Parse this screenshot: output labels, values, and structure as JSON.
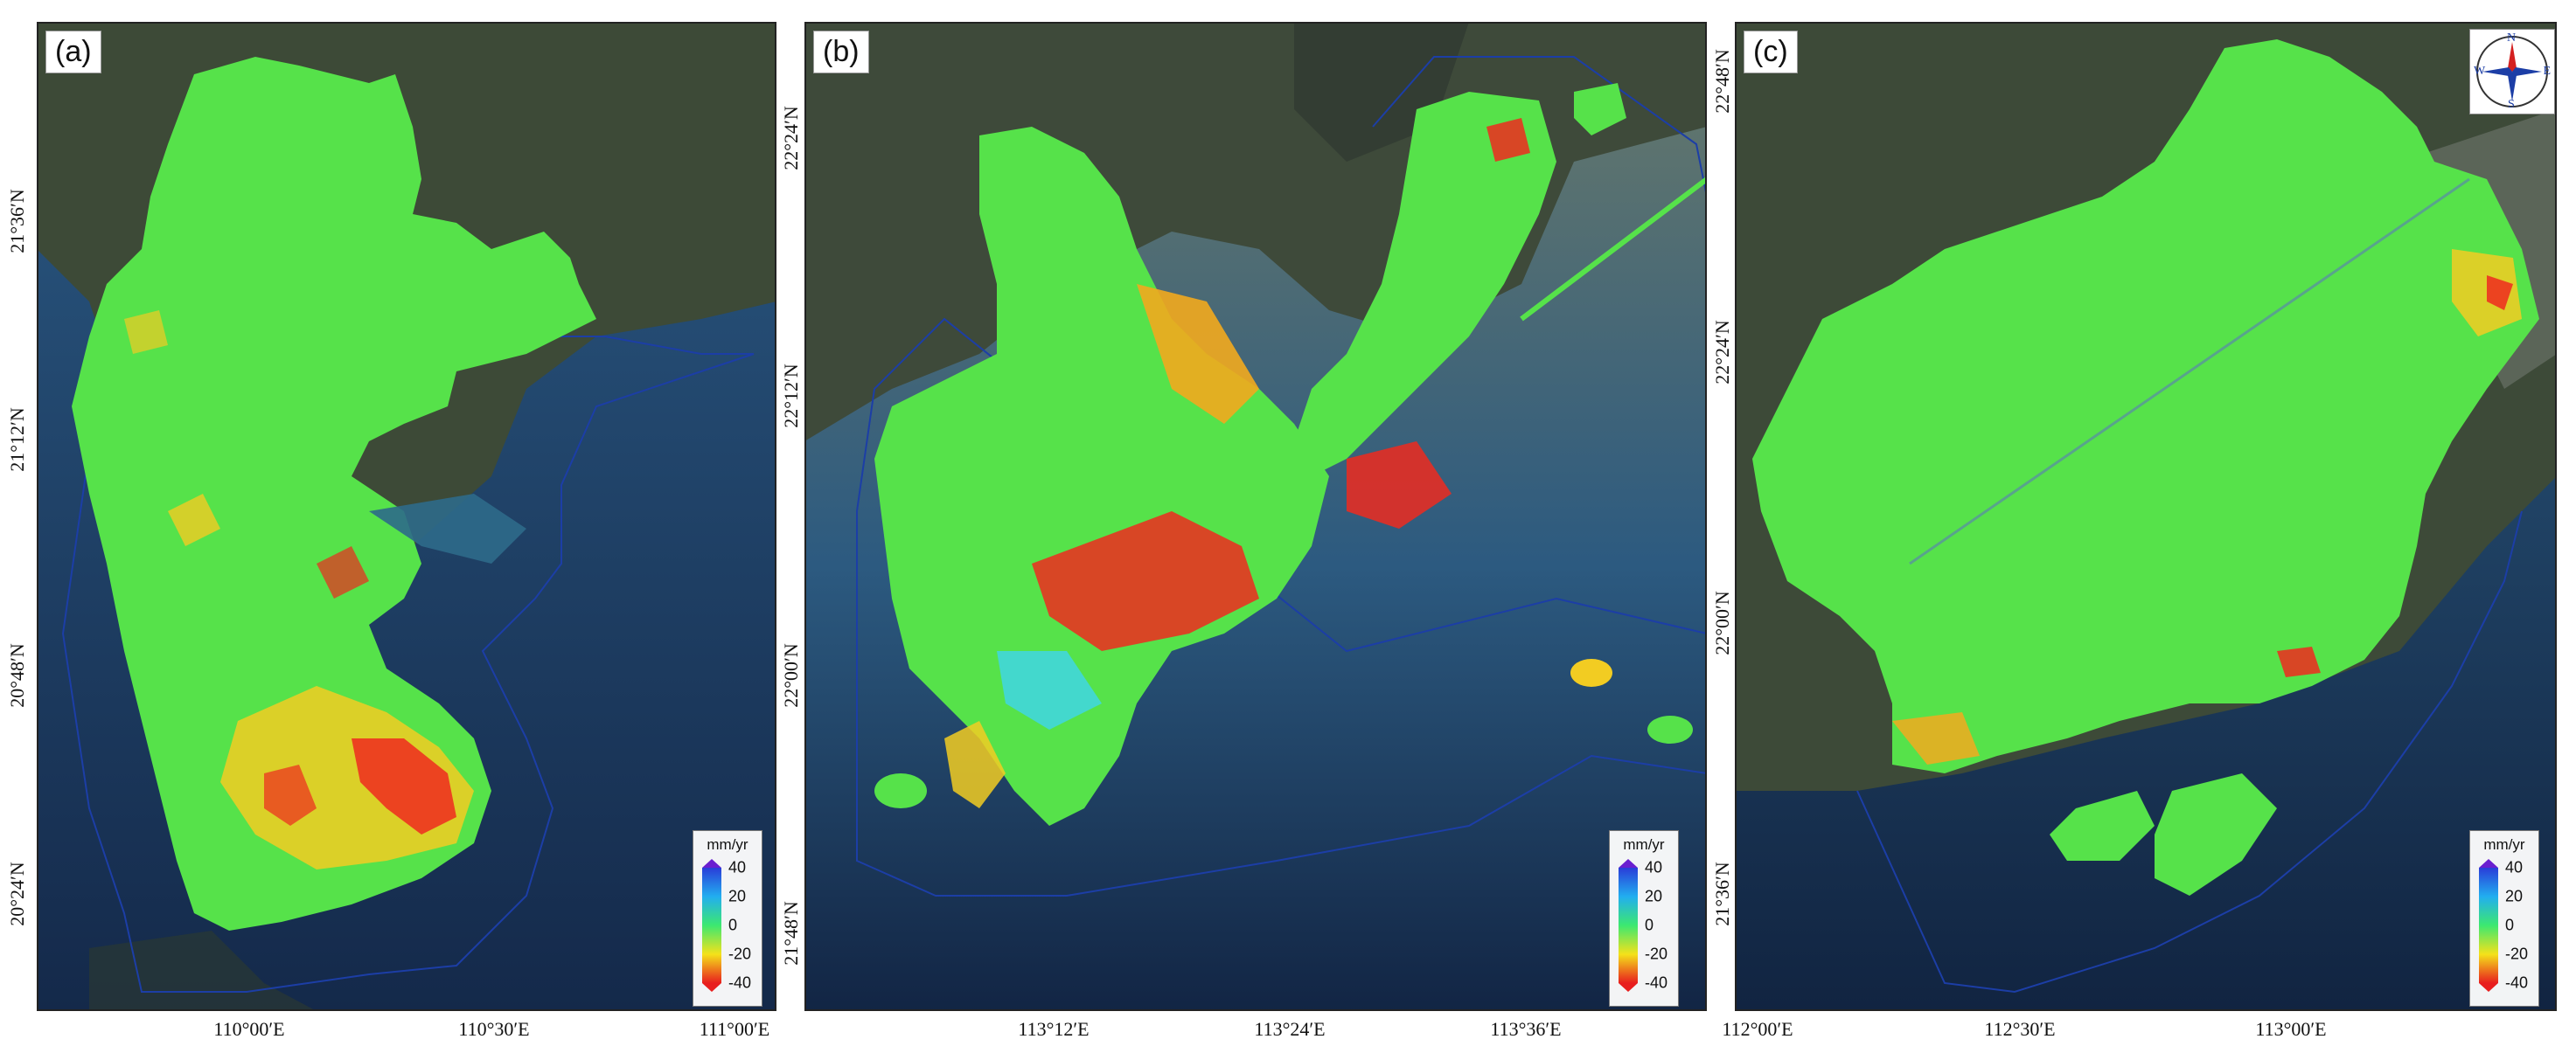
{
  "panels": [
    {
      "id": "a",
      "label": "(a)",
      "lat_labels": [
        "21°36′N",
        "21°12′N",
        "20°48′N",
        "20°24′N"
      ],
      "lon_labels": [
        "110°00′E",
        "110°30′E",
        "111°00′E"
      ]
    },
    {
      "id": "b",
      "label": "(b)",
      "lat_labels_left": [
        "22°24′N",
        "22°12′N",
        "22°00′N",
        "21°48′N"
      ],
      "lon_labels": [
        "113°12′E",
        "113°24′E",
        "113°36′E"
      ]
    },
    {
      "id": "c",
      "label": "(c)",
      "lat_labels_left": [
        "22°48′N",
        "22°24′N",
        "22°00′N",
        "21°36′N"
      ],
      "lon_labels": [
        "112°00′E",
        "112°30′E",
        "113°00′E"
      ]
    }
  ],
  "legend": {
    "unit": "mm/yr",
    "ticks": [
      "40",
      "20",
      "0",
      "-20",
      "-40"
    ],
    "colors": {
      "max": "#6a1fd0",
      "c40": "#2a3dd8",
      "c20": "#22aef0",
      "c0": "#3ce870",
      "cm20": "#f4e21a",
      "cm40": "#e81e1e"
    }
  },
  "compass": {
    "n": "N",
    "s": "S",
    "e": "E",
    "w": "W"
  },
  "colors": {
    "sea": "#1d3f66",
    "land_bg": "#3f4a3a",
    "deformation_green": "#56e24a",
    "deformation_red": "#ee2a1e",
    "deformation_yellow": "#f2cc22",
    "deformation_cyan": "#3fd6e4",
    "boundary": "#1c3ea6"
  }
}
